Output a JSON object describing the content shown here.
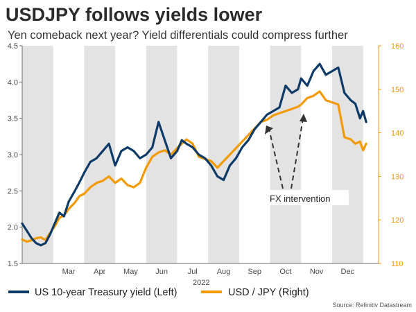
{
  "chart_data": {
    "type": "line",
    "title": "USDJPY follows yields lower",
    "subtitle": "Yen comeback next year? Yield differentials could compress further",
    "xlabel": "2022",
    "x_months": [
      "Mar",
      "Apr",
      "May",
      "Jun",
      "Jul",
      "Aug",
      "Sep",
      "Oct",
      "Nov",
      "Dec"
    ],
    "x_range": [
      0,
      11.5
    ],
    "left_axis": {
      "ylim": [
        1.5,
        4.5
      ],
      "ticks": [
        "1.5",
        "2.0",
        "2.5",
        "3.0",
        "3.5",
        "4.0",
        "4.5"
      ],
      "tick_values": [
        1.5,
        2.0,
        2.5,
        3.0,
        3.5,
        4.0,
        4.5
      ]
    },
    "right_axis": {
      "ylim": [
        110,
        160
      ],
      "ticks": [
        "110",
        "120",
        "130",
        "140",
        "150",
        "160"
      ],
      "tick_values": [
        110,
        120,
        130,
        140,
        150,
        160
      ]
    },
    "series": [
      {
        "name": "US 10-year Treasury yield (Left)",
        "axis": "left",
        "color": "#0d3a66",
        "x": [
          0.0,
          0.15,
          0.3,
          0.45,
          0.6,
          0.75,
          0.9,
          1.05,
          1.2,
          1.35,
          1.5,
          1.7,
          1.85,
          2.0,
          2.2,
          2.4,
          2.6,
          2.8,
          3.0,
          3.2,
          3.4,
          3.6,
          3.8,
          4.0,
          4.2,
          4.4,
          4.6,
          4.8,
          5.0,
          5.15,
          5.3,
          5.5,
          5.7,
          5.9,
          6.1,
          6.3,
          6.5,
          6.7,
          6.9,
          7.1,
          7.3,
          7.5,
          7.7,
          7.9,
          8.1,
          8.3,
          8.5,
          8.7,
          8.9,
          9.0,
          9.2,
          9.4,
          9.6,
          9.8,
          10.0,
          10.2,
          10.4,
          10.6,
          10.75,
          10.9,
          11.0,
          11.1
        ],
        "values": [
          2.05,
          1.95,
          1.85,
          1.78,
          1.75,
          1.78,
          1.9,
          2.05,
          2.2,
          2.15,
          2.35,
          2.5,
          2.62,
          2.75,
          2.9,
          2.95,
          3.05,
          3.15,
          2.85,
          3.05,
          3.1,
          3.05,
          2.95,
          3.0,
          3.1,
          3.45,
          3.2,
          2.95,
          3.05,
          3.2,
          3.15,
          3.1,
          3.0,
          2.95,
          2.85,
          2.7,
          2.65,
          2.85,
          2.95,
          3.1,
          3.2,
          3.35,
          3.45,
          3.55,
          3.6,
          3.65,
          3.95,
          3.85,
          3.9,
          4.05,
          3.95,
          4.15,
          4.25,
          4.1,
          4.15,
          4.2,
          3.85,
          3.75,
          3.7,
          3.5,
          3.6,
          3.45
        ]
      },
      {
        "name": "USD / JPY (Right)",
        "axis": "right",
        "color": "#f29a00",
        "x": [
          0.0,
          0.15,
          0.3,
          0.45,
          0.6,
          0.75,
          0.9,
          1.05,
          1.2,
          1.35,
          1.5,
          1.7,
          1.85,
          2.0,
          2.2,
          2.4,
          2.6,
          2.8,
          3.0,
          3.2,
          3.4,
          3.6,
          3.8,
          4.0,
          4.2,
          4.4,
          4.6,
          4.8,
          5.0,
          5.15,
          5.3,
          5.5,
          5.7,
          5.9,
          6.1,
          6.3,
          6.5,
          6.7,
          6.9,
          7.1,
          7.3,
          7.5,
          7.7,
          7.9,
          8.1,
          8.3,
          8.5,
          8.7,
          8.9,
          9.0,
          9.2,
          9.4,
          9.6,
          9.8,
          10.0,
          10.2,
          10.4,
          10.6,
          10.75,
          10.9,
          11.0,
          11.1
        ],
        "values": [
          115.5,
          115.0,
          115.3,
          115.8,
          116.0,
          115.4,
          117.0,
          118.5,
          120.5,
          121.0,
          122.5,
          124.0,
          125.5,
          126.0,
          127.5,
          128.5,
          129.0,
          130.0,
          128.5,
          129.5,
          128.0,
          127.5,
          128.5,
          132.0,
          134.5,
          135.5,
          136.0,
          135.0,
          136.5,
          137.5,
          138.5,
          137.5,
          134.5,
          134.0,
          133.5,
          132.0,
          133.5,
          135.0,
          136.5,
          138.0,
          139.5,
          141.0,
          142.5,
          143.0,
          144.0,
          144.5,
          145.0,
          145.5,
          146.0,
          146.5,
          148.0,
          148.5,
          149.5,
          147.5,
          147.0,
          146.5,
          139.0,
          138.5,
          137.5,
          138.0,
          136.0,
          137.5
        ]
      }
    ],
    "annotations": [
      {
        "text": "FX intervention"
      }
    ],
    "legend": [
      {
        "label": "US 10-year Treasury yield (Left)",
        "color": "#0d3a66"
      },
      {
        "label": "USD / JPY (Right)",
        "color": "#f29a00"
      }
    ],
    "source": "Source: Refinitiv Datastream",
    "shaded_months": [
      "Feb",
      "Apr",
      "Jun",
      "Aug",
      "Oct",
      "Dec"
    ]
  }
}
